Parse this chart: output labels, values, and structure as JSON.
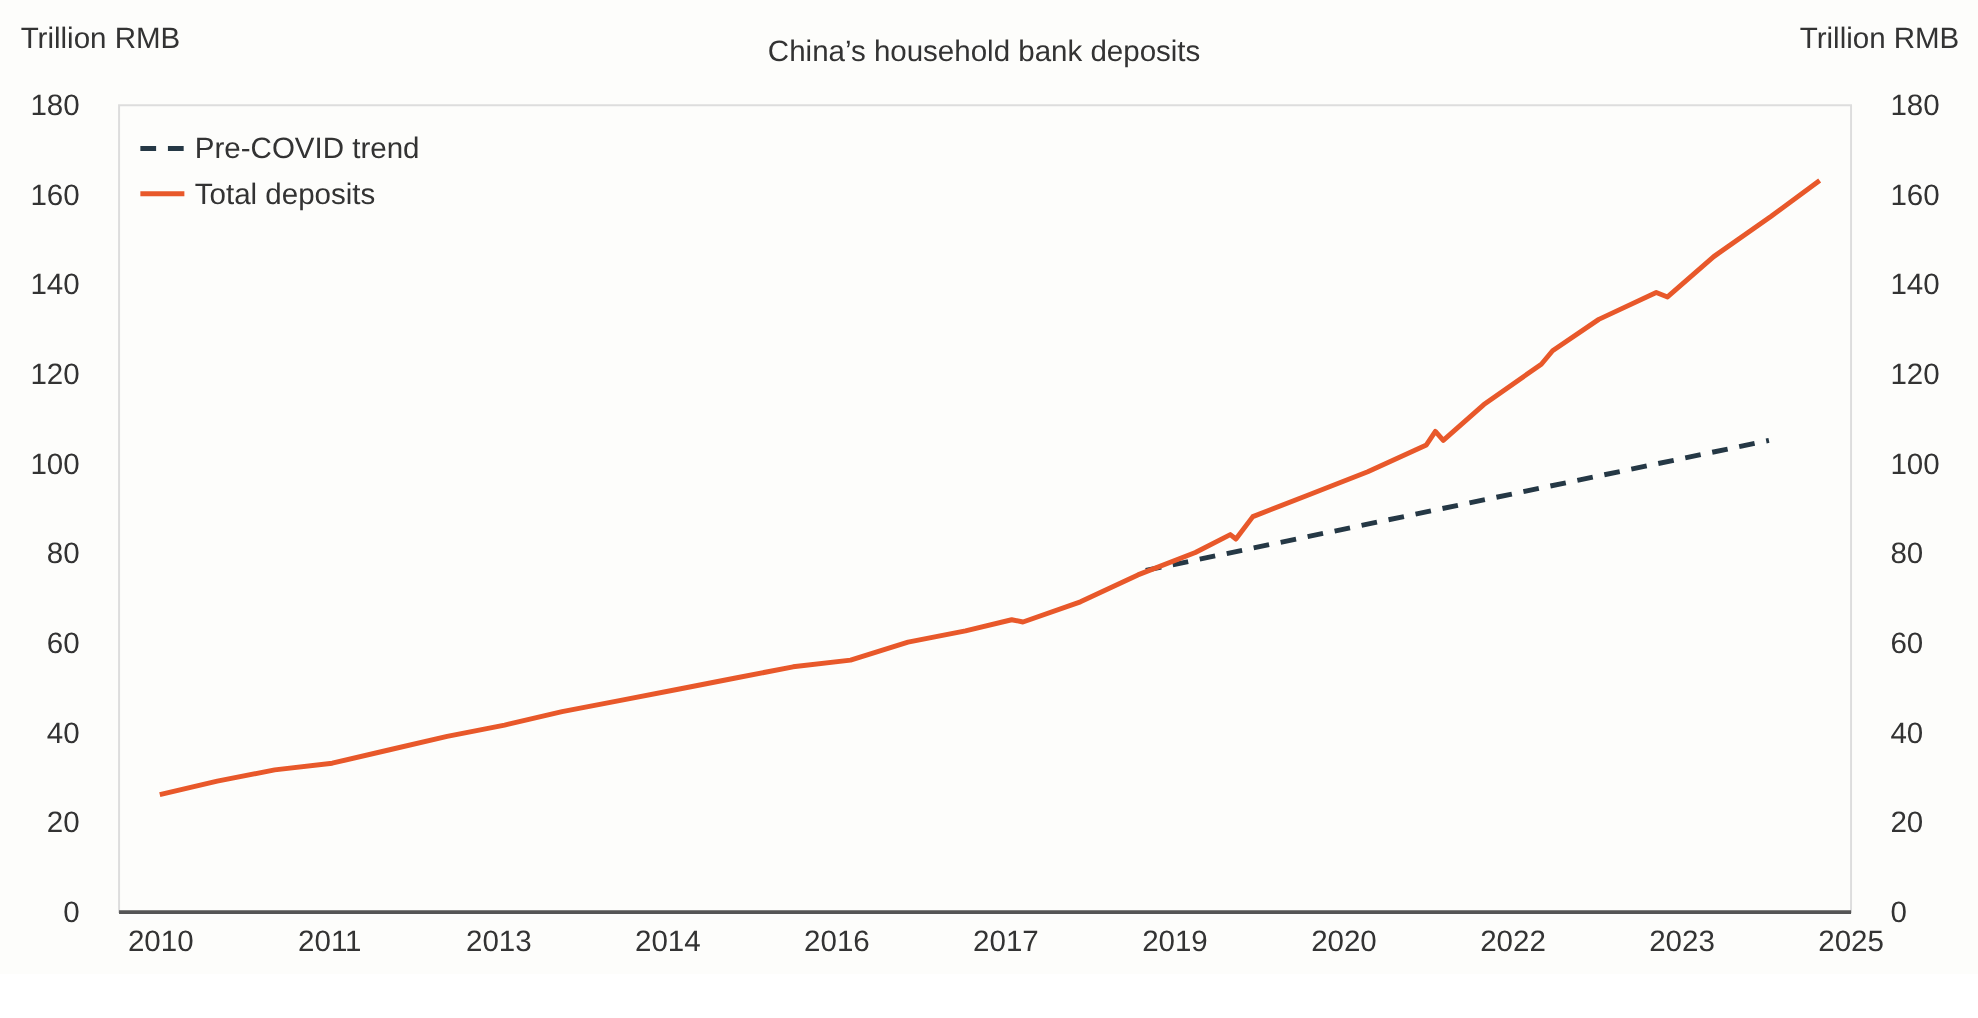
{
  "chart_data": {
    "type": "line",
    "title": "China’s household bank deposits",
    "ylabel": "Trillion RMB",
    "y2label": "Trillion RMB",
    "xlim": [
      2009.63,
      2025.0
    ],
    "xticks": [
      {
        "value": 2010.0,
        "label": "2010"
      },
      {
        "value": 2011.5,
        "label": "2011"
      },
      {
        "value": 2013.0,
        "label": "2013"
      },
      {
        "value": 2014.5,
        "label": "2014"
      },
      {
        "value": 2016.0,
        "label": "2016"
      },
      {
        "value": 2017.5,
        "label": "2017"
      },
      {
        "value": 2019.0,
        "label": "2019"
      },
      {
        "value": 2020.5,
        "label": "2020"
      },
      {
        "value": 2022.0,
        "label": "2022"
      },
      {
        "value": 2023.5,
        "label": "2023"
      },
      {
        "value": 2025.0,
        "label": "2025"
      }
    ],
    "ylim": [
      0,
      180
    ],
    "yticks": [
      0,
      20,
      40,
      60,
      80,
      100,
      120,
      140,
      160,
      180
    ],
    "y2lim": [
      0,
      180
    ],
    "y2ticks": [
      0,
      20,
      40,
      60,
      80,
      100,
      120,
      140,
      160,
      180
    ],
    "grid": false,
    "legend": "top left",
    "marker": "none",
    "series": [
      {
        "name": "Pre-COVID trend",
        "color": "#253845",
        "line_style": "dashed",
        "x": [
          2018.75,
          2024.28
        ],
        "values": [
          76,
          105
        ]
      },
      {
        "name": "Total deposits",
        "color": "#e8582a",
        "line_style": "solid",
        "x": [
          2010.0,
          2010.51,
          2011.02,
          2011.53,
          2012.04,
          2012.55,
          2013.06,
          2013.57,
          2014.09,
          2014.6,
          2015.11,
          2015.62,
          2016.13,
          2016.64,
          2017.15,
          2017.56,
          2017.66,
          2018.17,
          2018.68,
          2019.19,
          2019.5,
          2019.55,
          2019.7,
          2020.21,
          2020.72,
          2021.24,
          2021.32,
          2021.39,
          2021.75,
          2022.26,
          2022.36,
          2022.77,
          2023.28,
          2023.38,
          2023.79,
          2024.3,
          2024.73
        ],
        "values": [
          26,
          29,
          31.5,
          33,
          36,
          39,
          41.5,
          44.5,
          47,
          49.5,
          52,
          54.5,
          56,
          60,
          62.5,
          65,
          64.5,
          69,
          75,
          80,
          84,
          83,
          88,
          93,
          98,
          104,
          107,
          105,
          113,
          122,
          125,
          132,
          138,
          137,
          146,
          155,
          163
        ]
      }
    ]
  }
}
